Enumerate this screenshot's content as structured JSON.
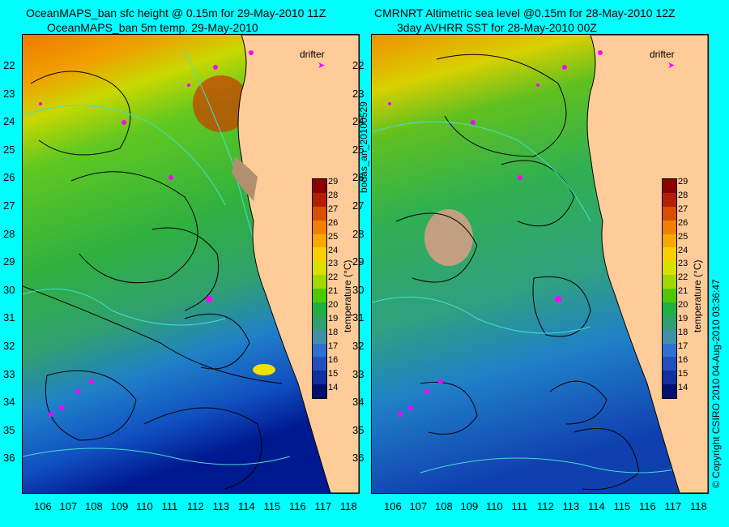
{
  "left": {
    "title1": "OceanMAPS_ban sfc height @ 0.15m for 29-May-2010 11Z",
    "title2": "OceanMAPS_ban 5m temp. 29-May-2010"
  },
  "right": {
    "title1": "CMRNRT Altimetric sea level  @0.15m  for 28-May-2010 12Z",
    "title2": "3day AVHRR SST for 28-May-2010 00Z"
  },
  "latitudes": [
    "22",
    "23",
    "24",
    "25",
    "26",
    "27",
    "28",
    "29",
    "30",
    "31",
    "32",
    "33",
    "34",
    "35",
    "36"
  ],
  "longitudes": [
    "106",
    "107",
    "108",
    "109",
    "110",
    "111",
    "112",
    "113",
    "114",
    "115",
    "116",
    "117",
    "118"
  ],
  "colorbar": {
    "ticks": [
      "29",
      "28",
      "27",
      "26",
      "25",
      "24",
      "23",
      "22",
      "21",
      "20",
      "19",
      "18",
      "17",
      "16",
      "15",
      "14"
    ],
    "label": "temperature (°C)",
    "colors": [
      "#8b0000",
      "#b22000",
      "#d85000",
      "#f08000",
      "#f8a800",
      "#f8d000",
      "#d8e000",
      "#a0d800",
      "#50c800",
      "#20b040",
      "#30a070",
      "#4090a8",
      "#3070d0",
      "#2050c0",
      "#1030a0",
      "#001070"
    ]
  },
  "legend": {
    "drifter": "drifter"
  },
  "side_text": {
    "code": "bodas_an_20100529",
    "copyright": "© Copyright CSIRO 2010   04-Aug-2010 03:36:47"
  },
  "colors": {
    "land": "#ffcc99",
    "background": "#00ffff",
    "drifter": "#ff00ff"
  }
}
